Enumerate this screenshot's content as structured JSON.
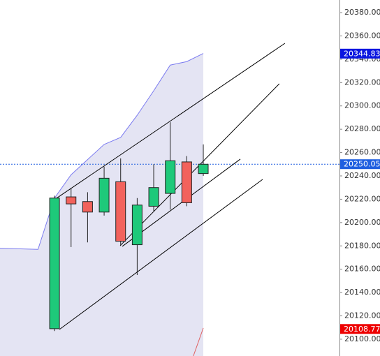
{
  "chart_data": {
    "type": "candlestick",
    "x": [
      0,
      1,
      2,
      3,
      4,
      5,
      6,
      7,
      8,
      9
    ],
    "open": [
      20109,
      20222,
      20218,
      20209,
      20235,
      20181,
      20214,
      20225,
      20252,
      20242
    ],
    "high": [
      20223,
      20229,
      20226,
      20248,
      20255,
      20221,
      20250,
      20286,
      20257,
      20267
    ],
    "low": [
      20107,
      20179,
      20183,
      20206,
      20180,
      20155,
      20210,
      20211,
      20214,
      20240
    ],
    "close": [
      20221,
      20216,
      20209,
      20238,
      20184,
      20215,
      20230,
      20253,
      20217,
      20250
    ],
    "up_color": "#1ec97a",
    "down_color": "#f2625c",
    "band": {
      "x": [
        -3.3,
        -1,
        0,
        1,
        2,
        3,
        4,
        5,
        6,
        7,
        8,
        9
      ],
      "values": [
        20178,
        20177,
        20221,
        20241,
        20254,
        20267,
        20273,
        20292,
        20313,
        20335,
        20338,
        20345
      ],
      "color": "#7b7bf0",
      "fill": "#e4e4f3"
    },
    "lower_band": {
      "x": [
        8.4,
        9
      ],
      "values": [
        20085.6,
        20109.6
      ],
      "color": "#e06060"
    },
    "trendlines": [
      {
        "x": [
          -0.25,
          13.94
        ],
        "values": [
          20217.3,
          20353.7
        ]
      },
      {
        "x": [
          3.97,
          13.6
        ],
        "values": [
          20180.2,
          20319.0
        ]
      },
      {
        "x": [
          4.1,
          11.24
        ],
        "values": [
          20179.6,
          20254.4
        ]
      },
      {
        "x": [
          0.3,
          12.59
        ],
        "values": [
          20108.4,
          20237.0
        ]
      }
    ],
    "price_tags": [
      {
        "value": 20344.83,
        "color": "#0b16e0",
        "line": false
      },
      {
        "value": 20250.05,
        "color": "#1f5fe0",
        "line": true
      },
      {
        "value": 20108.77,
        "color": "#ee0000",
        "line": false
      }
    ],
    "xlim": [
      -3.3,
      17.24
    ],
    "ylim": [
      20085.6,
      20390.8
    ],
    "yticks": [
      {
        "value": 20100,
        "label": "20100.00"
      },
      {
        "value": 20120,
        "label": "20120.00"
      },
      {
        "value": 20140,
        "label": "20140.00"
      },
      {
        "value": 20160,
        "label": "20160.00"
      },
      {
        "value": 20180,
        "label": "20180.00"
      },
      {
        "value": 20200,
        "label": "20200.00"
      },
      {
        "value": 20220,
        "label": "20220.00"
      },
      {
        "value": 20240,
        "label": "20240.00"
      },
      {
        "value": 20260,
        "label": "20260.00"
      },
      {
        "value": 20280,
        "label": "20280.00"
      },
      {
        "value": 20300,
        "label": "20300.00"
      },
      {
        "value": 20320,
        "label": "20320.00"
      },
      {
        "value": 20340,
        "label": "20340.00"
      },
      {
        "value": 20360,
        "label": "20360.00"
      },
      {
        "value": 20380,
        "label": "20380.00"
      }
    ]
  }
}
